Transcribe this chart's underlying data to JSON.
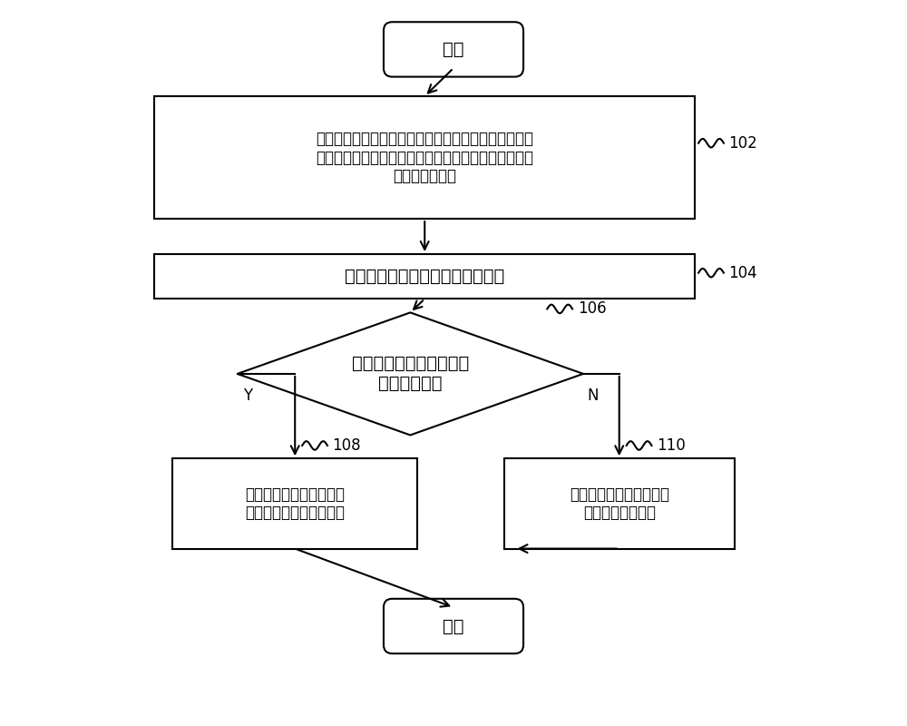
{
  "bg_color": "#ffffff",
  "line_color": "#000000",
  "box_color": "#ffffff",
  "text_color": "#000000",
  "font_size": 14,
  "font_size_small": 12,
  "title": "开始",
  "end_label": "结束",
  "box1_text": "实时检测冰算内的温度参数，根据温度参数判断是否有\n食物放入，温度参数包括以下至少一种或其组合：环境\n温度、食物温度",
  "box2_text": "当判断到有食物放入时，开始计时",
  "diamond_text": "判断食物的温度是否小于\n第一预设温度",
  "box3_text": "计时清零，再次根据温度\n参数判断是否有食物放入",
  "box4_text": "连续计时，第一预设时间\n后，发出提醒信息",
  "label_102": "102",
  "label_104": "104",
  "label_106": "106",
  "label_108": "108",
  "label_110": "110",
  "y_label": "Y",
  "n_label": "N"
}
